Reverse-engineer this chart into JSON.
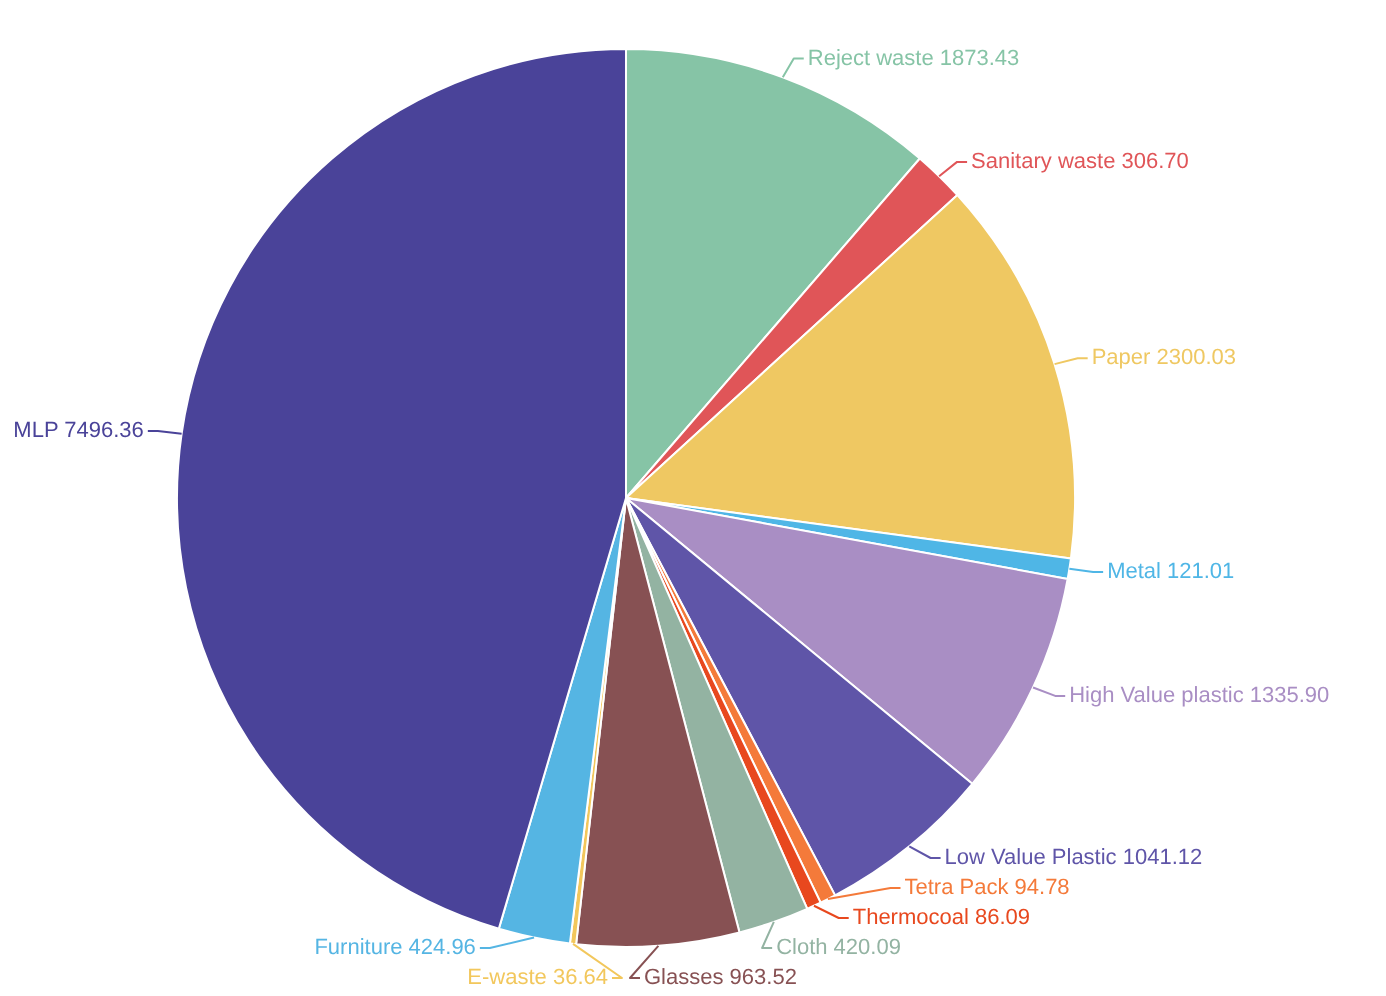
{
  "chart_data": {
    "type": "pie",
    "categories": [
      "Reject waste",
      "Sanitary waste",
      "Paper",
      "Metal",
      "High Value plastic",
      "Low Value Plastic",
      "Tetra Pack",
      "Thermocoal",
      "Cloth",
      "Glasses",
      "E-waste",
      "Furniture",
      "MLP"
    ],
    "values": [
      1873.43,
      306.7,
      2300.03,
      121.01,
      1335.9,
      1041.12,
      94.78,
      86.09,
      420.09,
      963.52,
      36.64,
      424.96,
      7496.36
    ],
    "value_labels": [
      "1873.43",
      "306.70",
      "2300.03",
      "121.01",
      "1335.90",
      "1041.12",
      "94.78",
      "86.09",
      "420.09",
      "963.52",
      "36.64",
      "424.96",
      "7496.36"
    ],
    "colors": [
      "#86c4a6",
      "#e05558",
      "#efc862",
      "#4fb6e6",
      "#a98ec4",
      "#5f55a8",
      "#f47a3a",
      "#e8481e",
      "#93b3a2",
      "#875153",
      "#f2c75c",
      "#55b5e3",
      "#4a4399"
    ],
    "legend": false
  }
}
